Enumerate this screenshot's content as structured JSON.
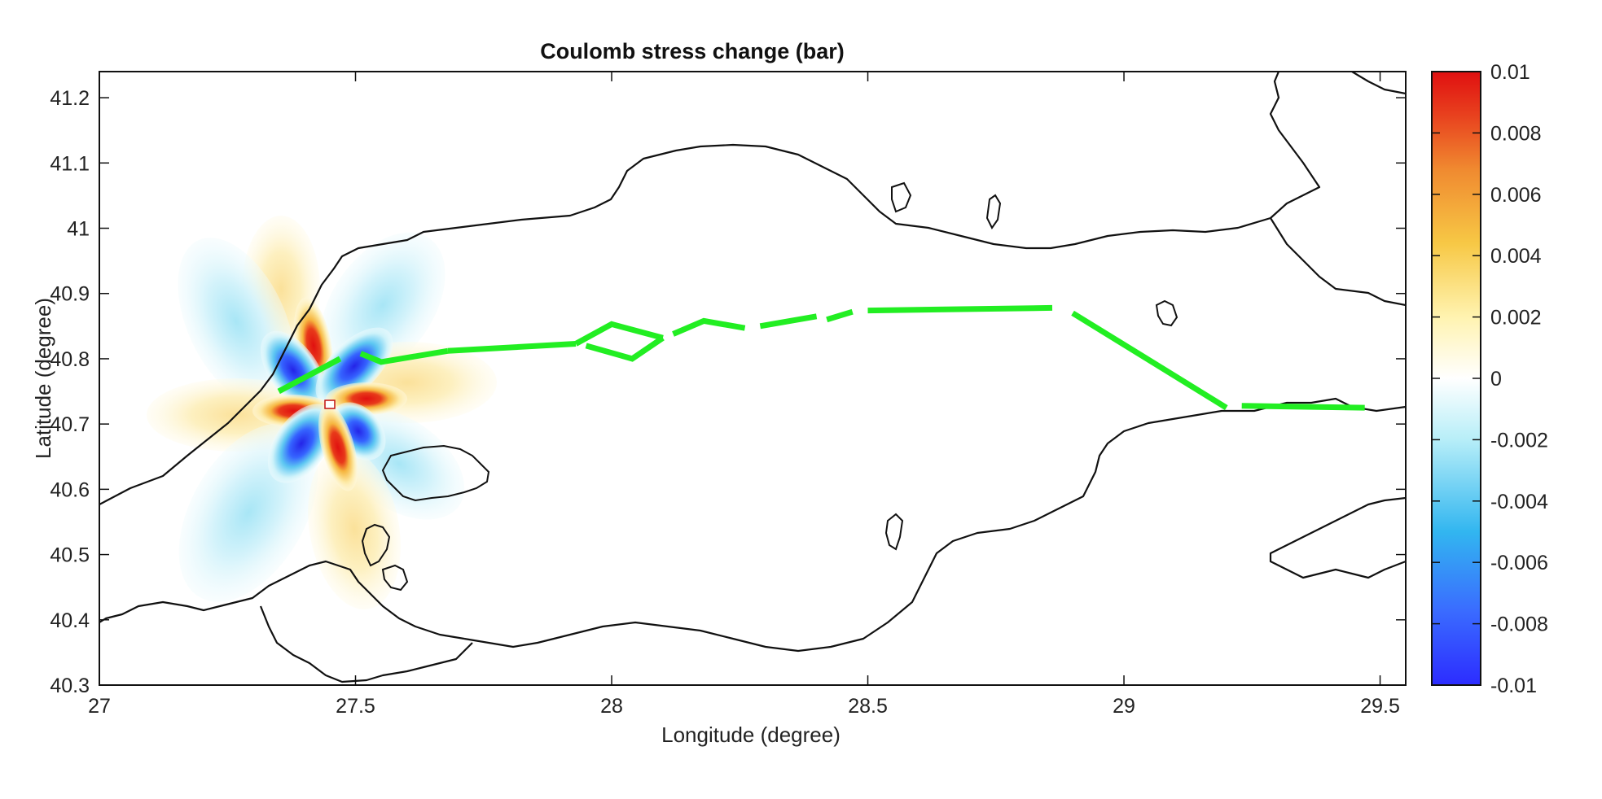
{
  "chart_data": {
    "type": "heatmap",
    "title": "Coulomb stress change (bar)",
    "xlabel": "Longitude (degree)",
    "ylabel": "Latitude  (degree)",
    "xlim": [
      27,
      29.55
    ],
    "ylim": [
      40.3,
      41.24
    ],
    "x_ticks": [
      27,
      27.5,
      28,
      28.5,
      29,
      29.5
    ],
    "x_tick_labels": [
      "27",
      "27.5",
      "28",
      "28.5",
      "29",
      "29.5"
    ],
    "y_ticks": [
      40.3,
      40.4,
      40.5,
      40.6,
      40.7,
      40.8,
      40.9,
      41,
      41.1,
      41.2
    ],
    "y_tick_labels": [
      "40.3",
      "40.4",
      "40.5",
      "40.6",
      "40.7",
      "40.8",
      "40.9",
      "41",
      "41.1",
      "41.2"
    ],
    "colorbar": {
      "min": -0.01,
      "max": 0.01,
      "ticks": [
        0.01,
        0.008,
        0.006,
        0.004,
        0.002,
        0,
        -0.002,
        -0.004,
        -0.006,
        -0.008,
        -0.01
      ],
      "tick_labels": [
        "0.01",
        "0.008",
        "0.006",
        "0.004",
        "0.002",
        "0",
        "-0.002",
        "-0.004",
        "-0.006",
        "-0.008",
        "-0.01"
      ],
      "colors": [
        "#2c2cff",
        "#3a6bff",
        "#32b6f0",
        "#9ee6f5",
        "#ffffff",
        "#ffef9a",
        "#f7c845",
        "#f08a30",
        "#e8401e",
        "#e01515"
      ]
    },
    "source_point": {
      "lon": 27.41,
      "lat": 40.725
    },
    "stress_lobes_note_color_positive": "#e41a1c",
    "stress_lobes_note_color_negative": "#2b2bea",
    "fault_color": "#22ee22",
    "coastline_color": "#111111",
    "fault_segments": [
      [
        [
          27.35,
          40.75
        ],
        [
          27.47,
          40.8
        ]
      ],
      [
        [
          27.51,
          40.808
        ],
        [
          27.55,
          40.795
        ],
        [
          27.68,
          40.812
        ]
      ],
      [
        [
          27.68,
          40.812
        ],
        [
          27.93,
          40.823
        ]
      ],
      [
        [
          27.93,
          40.823
        ],
        [
          28.0,
          40.853
        ],
        [
          28.1,
          40.832
        ]
      ],
      [
        [
          27.95,
          40.82
        ],
        [
          28.04,
          40.8
        ],
        [
          28.1,
          40.832
        ]
      ],
      [
        [
          28.12,
          40.838
        ],
        [
          28.18,
          40.858
        ],
        [
          28.26,
          40.847
        ]
      ],
      [
        [
          28.29,
          40.85
        ],
        [
          28.4,
          40.865
        ]
      ],
      [
        [
          28.42,
          40.86
        ],
        [
          28.47,
          40.872
        ]
      ],
      [
        [
          28.5,
          40.874
        ],
        [
          28.86,
          40.878
        ]
      ],
      [
        [
          28.9,
          40.87
        ],
        [
          29.2,
          40.725
        ]
      ],
      [
        [
          29.23,
          40.728
        ],
        [
          29.47,
          40.725
        ]
      ]
    ]
  }
}
